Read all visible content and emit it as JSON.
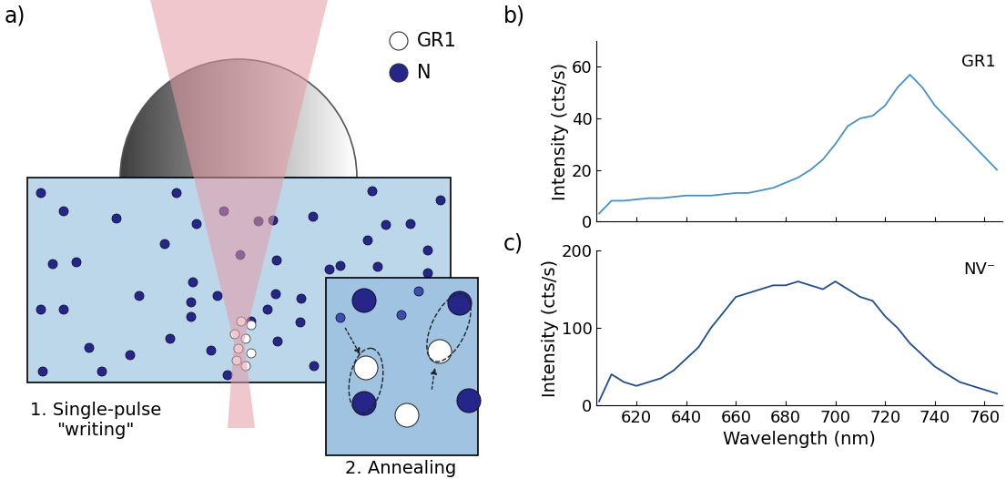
{
  "panel_labels": [
    "a)",
    "b)",
    "c)"
  ],
  "diagram": {
    "legend": [
      {
        "label": "GR1",
        "color": "#ffffff"
      },
      {
        "label": "N",
        "color": "#25258a"
      }
    ],
    "steps": [
      "1. Single-pulse\n\"writing\"",
      "2. Annealing"
    ]
  },
  "chart_data": [
    {
      "type": "line",
      "annotation": "GR1",
      "ylabel": "Intensity (cts/s)",
      "color": "#4a90c8",
      "x": [
        605,
        610,
        615,
        620,
        625,
        630,
        635,
        640,
        645,
        650,
        655,
        660,
        665,
        670,
        675,
        680,
        685,
        690,
        695,
        700,
        705,
        710,
        715,
        720,
        725,
        730,
        735,
        740,
        745,
        750,
        755,
        760,
        765
      ],
      "values": [
        3,
        8,
        8,
        8.5,
        9,
        9,
        9.5,
        10,
        10,
        10,
        10.5,
        11,
        11,
        12,
        13,
        15,
        17,
        20,
        24,
        30,
        37,
        40,
        41,
        45,
        52,
        57,
        52,
        45,
        40,
        35,
        30,
        25,
        20
      ],
      "xlim": [
        604,
        767
      ],
      "ylim": [
        0,
        70
      ],
      "xticks": [
        620,
        640,
        660,
        680,
        700,
        720,
        740,
        760
      ],
      "yticks": [
        0,
        20,
        40,
        60
      ],
      "tick_labels": "y"
    },
    {
      "type": "line",
      "annotation": "NV⁻",
      "ylabel": "Intensity (cts/s)",
      "xlabel": "Wavelength (nm)",
      "color": "#1f4e8c",
      "x": [
        605,
        610,
        615,
        620,
        625,
        630,
        635,
        640,
        645,
        650,
        655,
        660,
        665,
        670,
        675,
        680,
        685,
        690,
        695,
        700,
        705,
        710,
        715,
        720,
        725,
        730,
        735,
        740,
        745,
        750,
        755,
        760,
        765
      ],
      "values": [
        5,
        40,
        30,
        25,
        30,
        35,
        45,
        60,
        75,
        100,
        120,
        140,
        145,
        150,
        155,
        155,
        160,
        155,
        150,
        160,
        150,
        140,
        135,
        115,
        100,
        80,
        65,
        50,
        40,
        30,
        25,
        20,
        15
      ],
      "xlim": [
        604,
        767
      ],
      "ylim": [
        0,
        200
      ],
      "xticks": [
        620,
        640,
        660,
        680,
        700,
        720,
        740,
        760
      ],
      "yticks": [
        0,
        100,
        200
      ]
    }
  ]
}
